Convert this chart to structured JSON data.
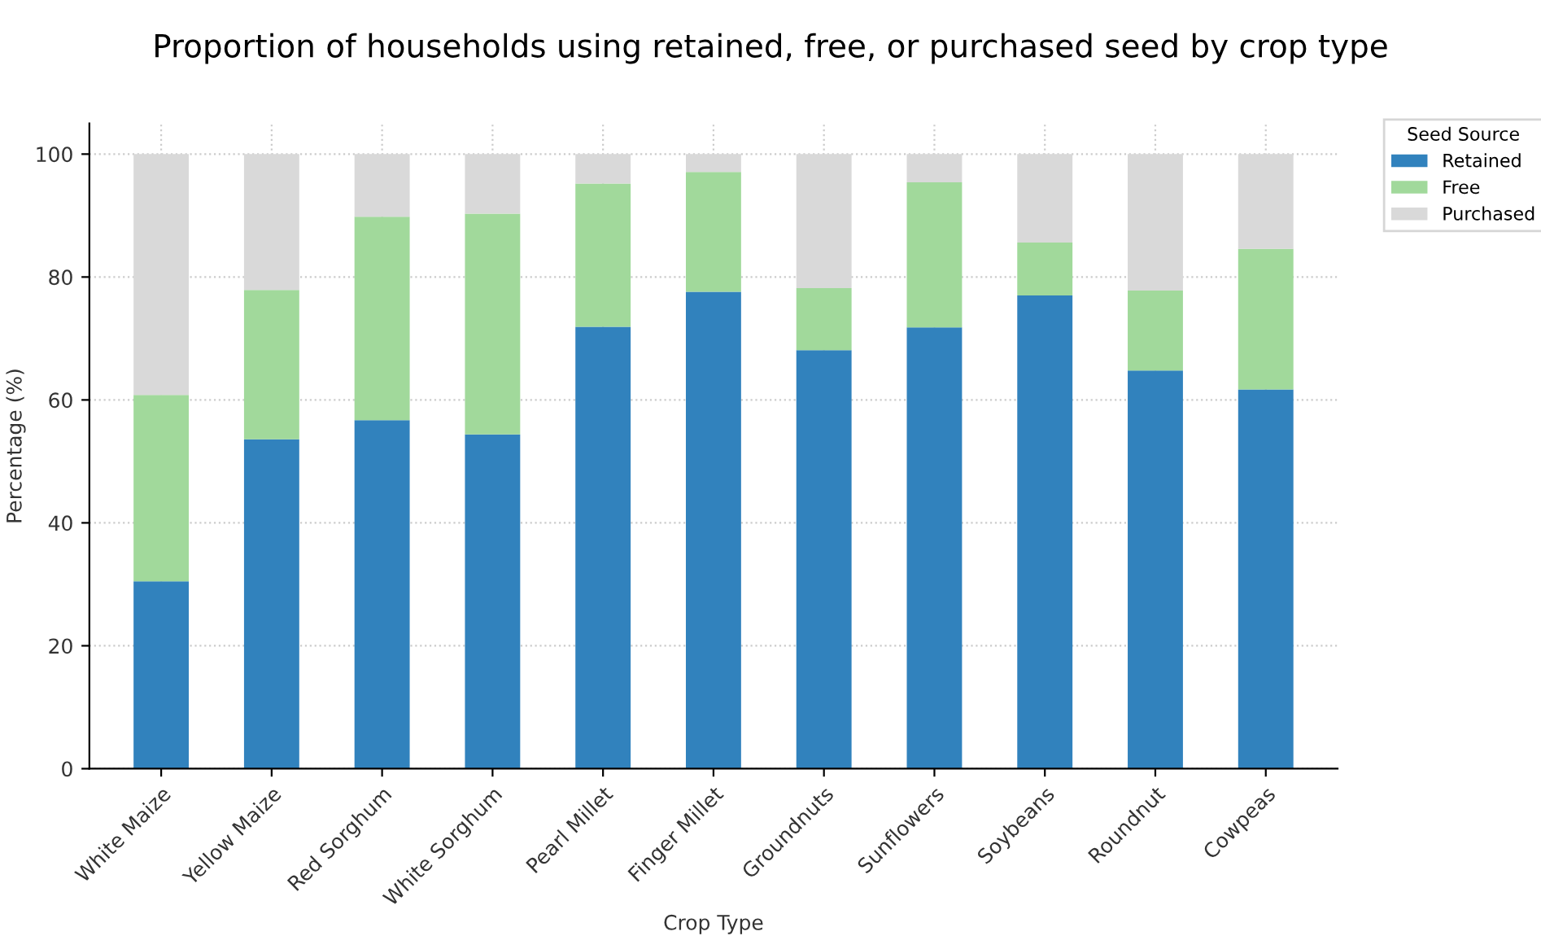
{
  "chart_data": {
    "type": "bar",
    "stacked": true,
    "title": "Proportion of households using retained, free, or purchased seed by crop type",
    "xlabel": "Crop Type",
    "ylabel": "Percentage (%)",
    "legend_title": "Seed Source",
    "categories": [
      "White Maize",
      "Yellow Maize",
      "Red Sorghum",
      "White Sorghum",
      "Pearl Millet",
      "Finger Millet",
      "Groundnuts",
      "Sunflowers",
      "Soybeans",
      "Roundnut",
      "Cowpeas"
    ],
    "series": [
      {
        "name": "Retained",
        "color": "#3182bd",
        "values": [
          30.5,
          53.6,
          56.7,
          54.4,
          71.9,
          77.6,
          68.1,
          71.8,
          77.0,
          64.8,
          61.7
        ]
      },
      {
        "name": "Free",
        "color": "#a1d99b",
        "values": [
          30.3,
          24.3,
          33.1,
          35.9,
          23.3,
          19.5,
          10.1,
          23.6,
          8.6,
          13.0,
          22.9
        ]
      },
      {
        "name": "Purchased",
        "color": "#d9d9d9",
        "values": [
          39.2,
          22.1,
          10.2,
          9.7,
          4.8,
          2.9,
          21.8,
          4.6,
          14.4,
          22.2,
          15.4
        ]
      }
    ],
    "ylim": [
      0,
      105
    ],
    "yticks": [
      0,
      20,
      40,
      60,
      80,
      100
    ],
    "grid": true,
    "legend": "top right"
  }
}
